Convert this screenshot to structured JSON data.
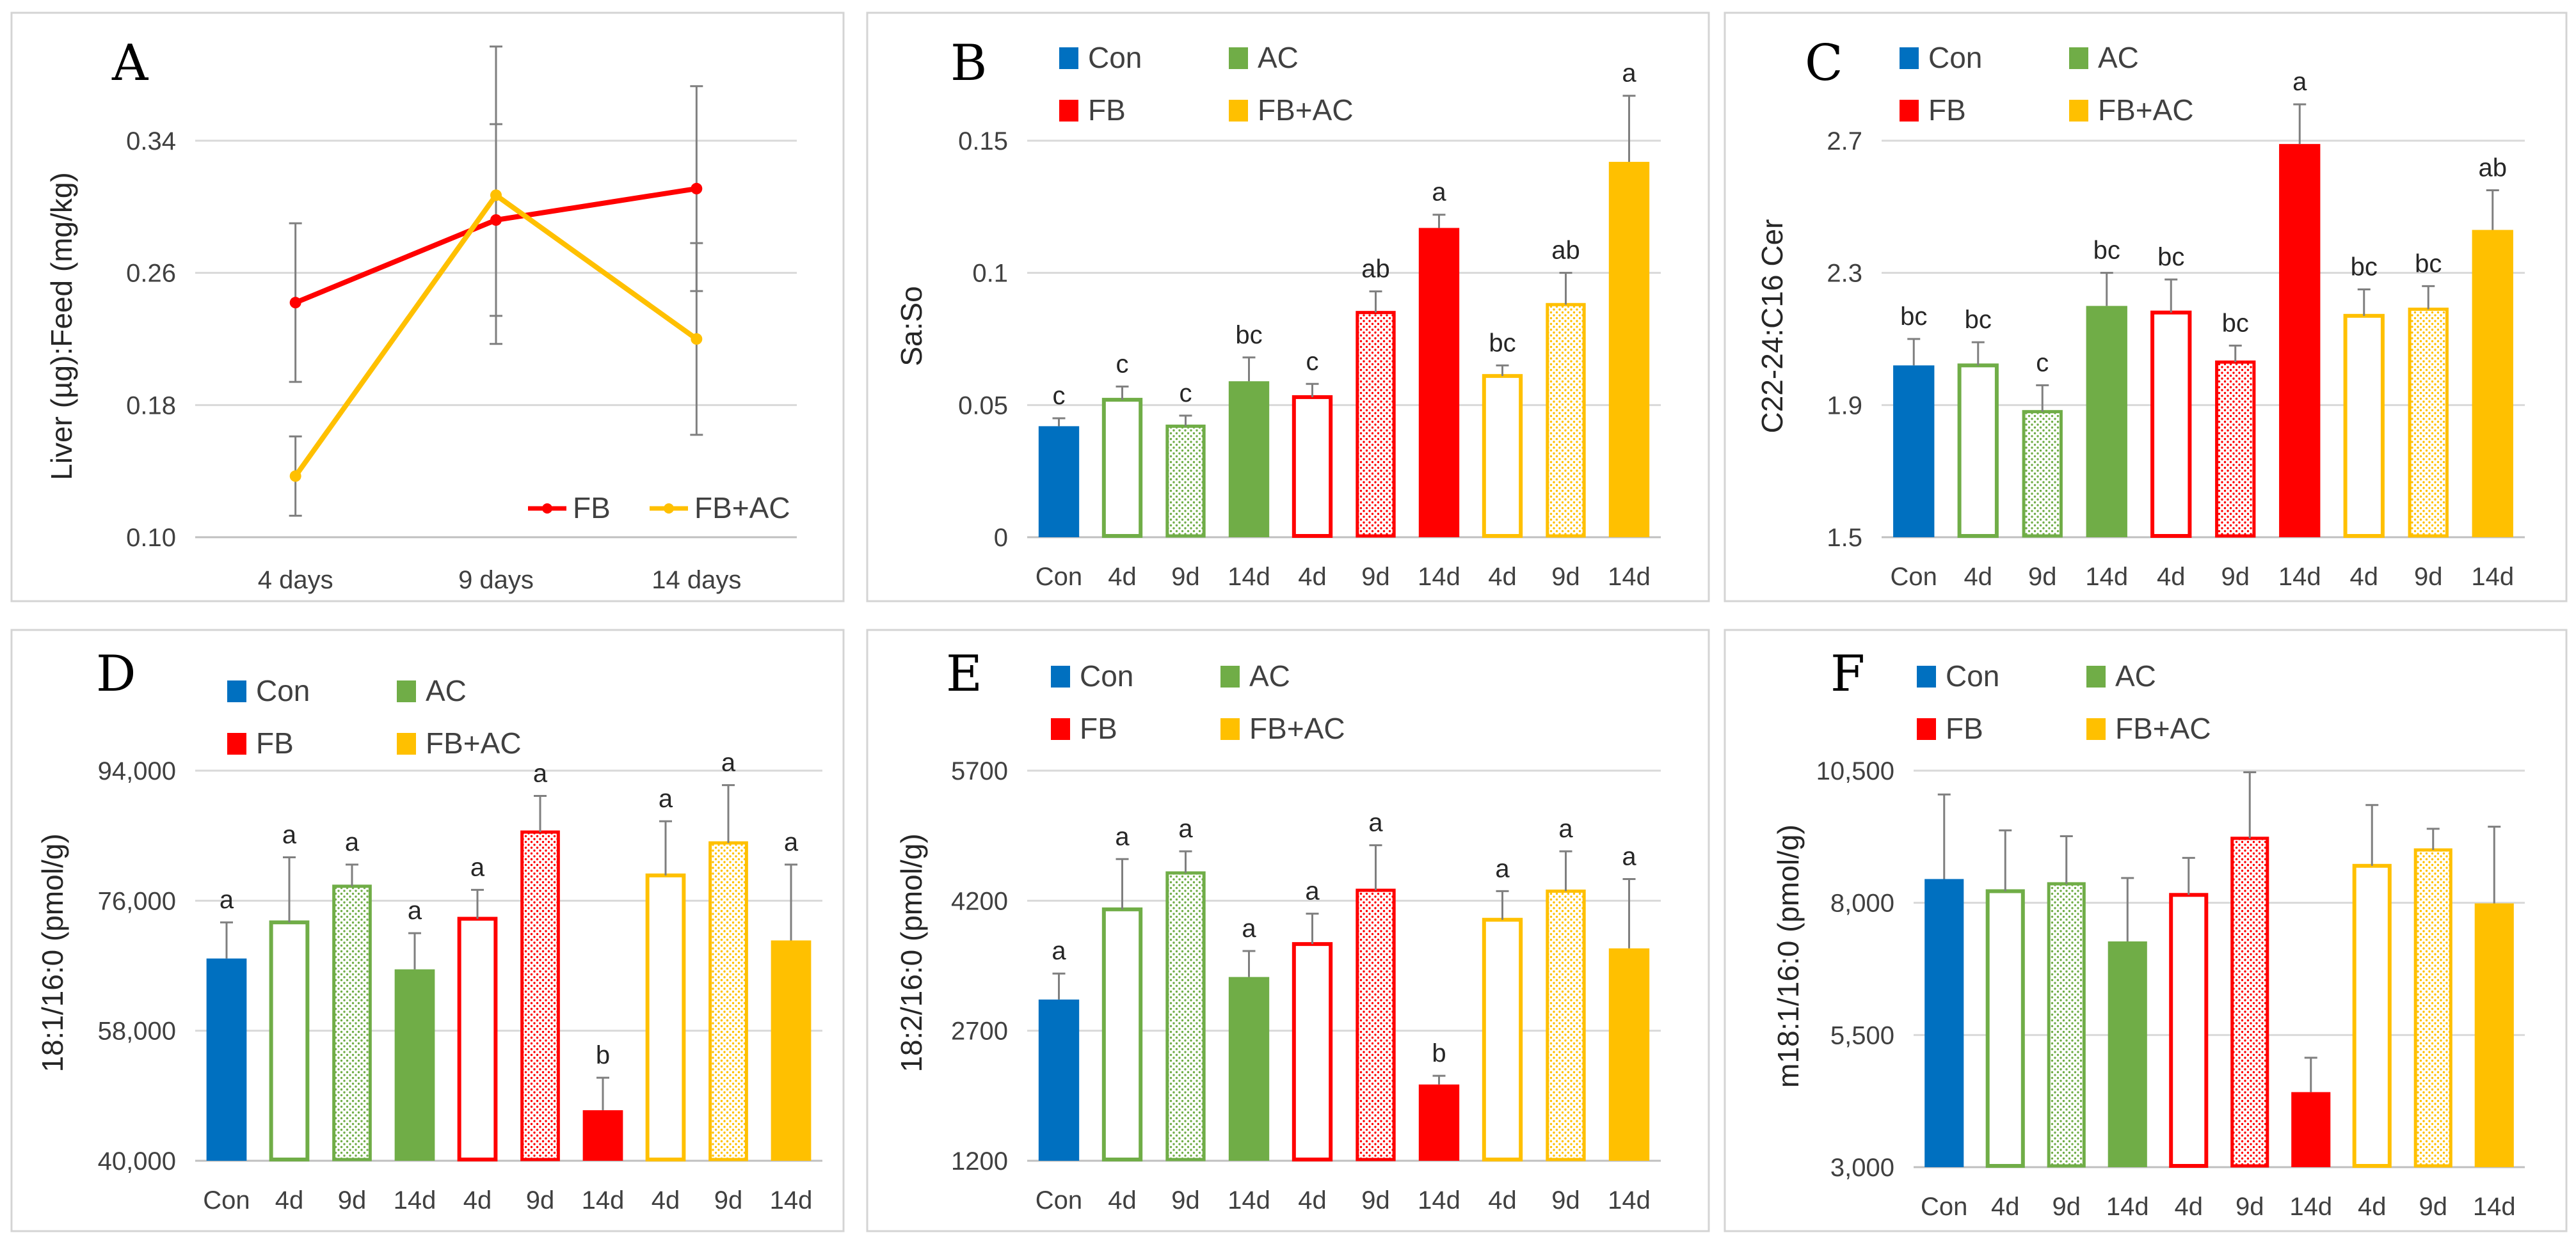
{
  "colors": {
    "Con": "#0070c0",
    "AC": "#70ad47",
    "FB": "#ff0000",
    "FB+AC": "#ffc000"
  },
  "legend_items": [
    "Con",
    "AC",
    "FB",
    "FB+AC"
  ],
  "bar_categories": [
    "Con",
    "4d",
    "9d",
    "14d",
    "4d",
    "9d",
    "14d",
    "4d",
    "9d",
    "14d"
  ],
  "bar_groups": [
    "Con",
    "AC",
    "AC",
    "AC",
    "FB",
    "FB",
    "FB",
    "FB+AC",
    "FB+AC",
    "FB+AC"
  ],
  "bar_styles": [
    "solid",
    "outline",
    "dotted",
    "solid",
    "outline",
    "dotted",
    "solid",
    "outline",
    "dotted",
    "solid"
  ],
  "chart_data": [
    {
      "id": "A",
      "type": "line",
      "panel_label": "A",
      "ylabel": "Liver (µg):Feed (mg/kg)",
      "categories": [
        "4 days",
        "9 days",
        "14 days"
      ],
      "ylim": [
        0.1,
        0.34
      ],
      "yticks": [
        "0.10",
        "0.18",
        "0.26",
        "0.34"
      ],
      "series": [
        {
          "name": "FB",
          "color": "#ff0000",
          "values": [
            0.242,
            0.292,
            0.311
          ],
          "errors": [
            0.048,
            0.058,
            0.062
          ]
        },
        {
          "name": "FB+AC",
          "color": "#ffc000",
          "values": [
            0.137,
            0.307,
            0.22
          ],
          "errors": [
            0.024,
            0.09,
            0.058
          ]
        }
      ],
      "legend": [
        "FB",
        "FB+AC"
      ]
    },
    {
      "id": "B",
      "type": "bar",
      "panel_label": "B",
      "ylabel": "Sa:So",
      "ylim": [
        0,
        0.15
      ],
      "yticks": [
        "0",
        "0.05",
        "0.1",
        "0.15"
      ],
      "values": [
        0.042,
        0.052,
        0.042,
        0.059,
        0.053,
        0.085,
        0.117,
        0.061,
        0.088,
        0.142
      ],
      "errors": [
        0.003,
        0.005,
        0.004,
        0.009,
        0.005,
        0.008,
        0.005,
        0.004,
        0.012,
        0.025
      ],
      "letters": [
        "c",
        "c",
        "c",
        "bc",
        "c",
        "ab",
        "a",
        "bc",
        "ab",
        "a"
      ]
    },
    {
      "id": "C",
      "type": "bar",
      "panel_label": "C",
      "ylabel": "C22-24:C16 Cer",
      "ylim": [
        1.5,
        2.7
      ],
      "yticks": [
        "1.5",
        "1.9",
        "2.3",
        "2.7"
      ],
      "values": [
        2.02,
        2.02,
        1.88,
        2.2,
        2.18,
        2.03,
        2.69,
        2.17,
        2.19,
        2.43
      ],
      "errors": [
        0.08,
        0.07,
        0.08,
        0.1,
        0.1,
        0.05,
        0.12,
        0.08,
        0.07,
        0.12
      ],
      "letters": [
        "bc",
        "bc",
        "c",
        "bc",
        "bc",
        "bc",
        "a",
        "bc",
        "bc",
        "ab"
      ]
    },
    {
      "id": "D",
      "type": "bar",
      "panel_label": "D",
      "ylabel": "18:1/16:0 (pmol/g)",
      "ylim": [
        40000,
        94000
      ],
      "yticks": [
        "40,000",
        "58,000",
        "76,000",
        "94,000"
      ],
      "values": [
        68000,
        73000,
        78000,
        66500,
        73500,
        85500,
        47000,
        79500,
        84000,
        70500
      ],
      "errors": [
        5000,
        9000,
        3000,
        5000,
        4000,
        5000,
        4500,
        7500,
        8000,
        10500
      ],
      "letters": [
        "a",
        "a",
        "a",
        "a",
        "a",
        "a",
        "b",
        "a",
        "a",
        "a"
      ]
    },
    {
      "id": "E",
      "type": "bar",
      "panel_label": "E",
      "ylabel": "18:2/16:0 (pmol/g)",
      "ylim": [
        1200,
        5700
      ],
      "yticks": [
        "1200",
        "2700",
        "4200",
        "5700"
      ],
      "values": [
        3060,
        4100,
        4520,
        3320,
        3700,
        4320,
        2080,
        3980,
        4310,
        3650
      ],
      "errors": [
        300,
        580,
        250,
        300,
        350,
        520,
        100,
        330,
        460,
        800
      ],
      "letters": [
        "a",
        "a",
        "a",
        "a",
        "a",
        "a",
        "b",
        "a",
        "a",
        "a"
      ]
    },
    {
      "id": "F",
      "type": "bar",
      "panel_label": "F",
      "ylabel": "m18:1/16:0 (pmol/g)",
      "ylim": [
        3000,
        10500
      ],
      "yticks": [
        "3,000",
        "5,500",
        "8,000",
        "10,500"
      ],
      "values": [
        8450,
        8220,
        8360,
        7270,
        8150,
        9220,
        4420,
        8700,
        9000,
        7990
      ],
      "errors": [
        1600,
        1150,
        900,
        1200,
        700,
        1250,
        650,
        1150,
        400,
        1450
      ],
      "letters": []
    }
  ]
}
